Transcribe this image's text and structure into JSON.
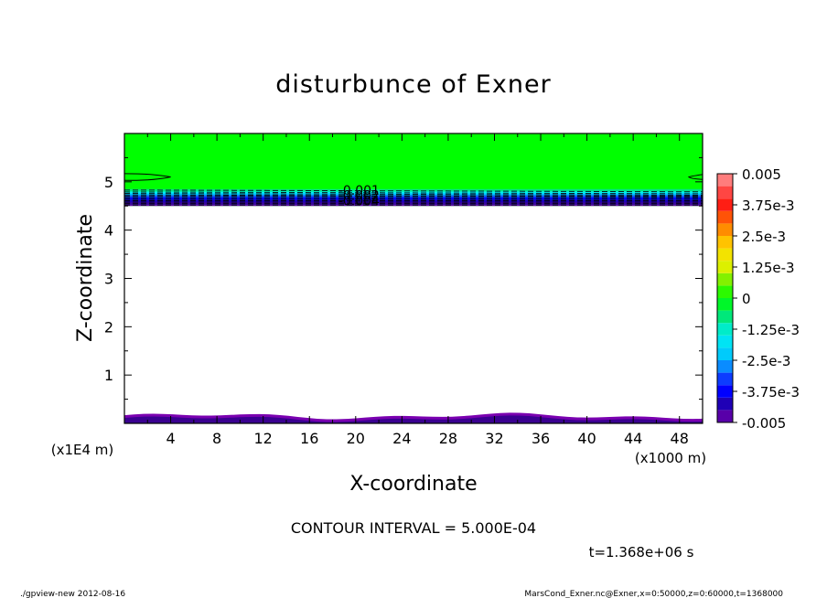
{
  "chart_data": {
    "type": "heatmap",
    "title": "disturbunce of Exner",
    "xlabel": "X-coordinate",
    "ylabel": "Z-coordinate",
    "x_unit": "(x1000 m)",
    "y_unit": "(x1E4 m)",
    "xlim": [
      0,
      50
    ],
    "ylim": [
      0,
      6
    ],
    "x_ticks": [
      "4",
      "8",
      "12",
      "16",
      "20",
      "24",
      "28",
      "32",
      "36",
      "40",
      "44",
      "48"
    ],
    "y_ticks": [
      "1",
      "2",
      "3",
      "4",
      "5"
    ],
    "contour_labels": [
      "-0.001",
      "-0.002",
      "-0.004"
    ],
    "colorbar": {
      "range": [
        -0.005,
        0.005
      ],
      "tick_labels": [
        "0.005",
        "3.75e-3",
        "2.5e-3",
        "1.25e-3",
        "0",
        "-1.25e-3",
        "-2.5e-3",
        "-3.75e-3",
        "-0.005"
      ]
    },
    "regions": [
      {
        "z_from": 4.5,
        "z_to": 6.0,
        "value": 0.0
      },
      {
        "z_from": 0.0,
        "z_to": 0.15,
        "value": -0.005
      }
    ],
    "contour_interval_text": "CONTOUR INTERVAL = 5.000E-04",
    "time_text": "t=1.368e+06 s"
  },
  "footer": {
    "left": "./gpview-new  2012-08-16",
    "right": "MarsCond_Exner.nc@Exner,x=0:50000,z=0:60000,t=1368000"
  },
  "colors": {
    "green": "#00ff00",
    "blue_dark": "#0000aa",
    "purple": "#7a00b0"
  }
}
